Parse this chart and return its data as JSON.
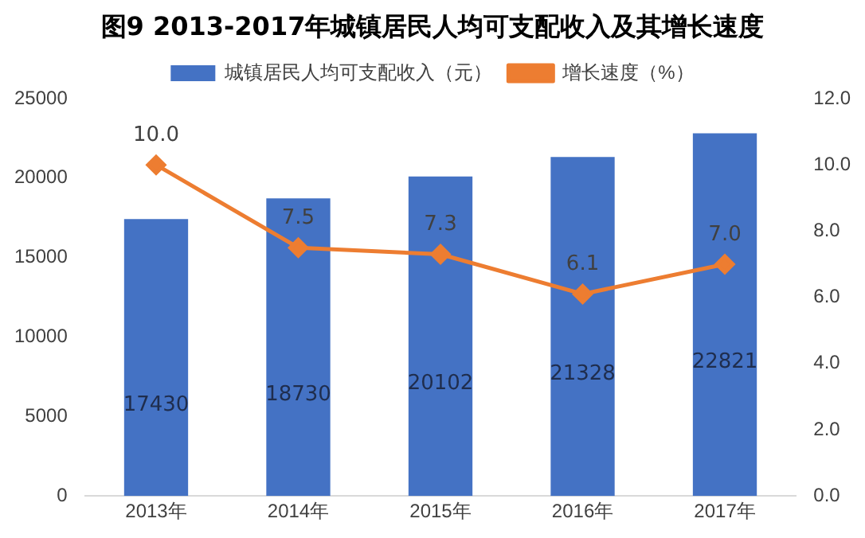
{
  "chart_data": {
    "type": "bar",
    "title": "图9  2013-2017年城镇居民人均可支配收入及其增长速度",
    "categories": [
      "2013年",
      "2014年",
      "2015年",
      "2016年",
      "2017年"
    ],
    "series": [
      {
        "name": "城镇居民人均可支配收入（元）",
        "color": "#4472c4",
        "values": [
          17430,
          18730,
          20102,
          21328,
          22821
        ],
        "value_labels": [
          "17430",
          "18730",
          "20102",
          "21328",
          "22821"
        ]
      },
      {
        "name": "增长速度（%）",
        "type": "line",
        "axis": "y2",
        "color": "#ed7d31",
        "values": [
          10.0,
          7.5,
          7.3,
          6.1,
          7.0
        ],
        "value_labels": [
          "10.0",
          "7.5",
          "7.3",
          "6.1",
          "7.0"
        ]
      }
    ],
    "ylim": [
      0,
      25000
    ],
    "yticks": [
      0,
      5000,
      10000,
      15000,
      20000,
      25000
    ],
    "y2lim": [
      0,
      12
    ],
    "y2ticks": [
      {
        "value": 0,
        "label": "0.0"
      },
      {
        "value": 2,
        "label": "2.0"
      },
      {
        "value": 4,
        "label": "4.0"
      },
      {
        "value": 6,
        "label": "6.0"
      },
      {
        "value": 8,
        "label": "8.0"
      },
      {
        "value": 10,
        "label": "10.0"
      },
      {
        "value": 12,
        "label": "12.0"
      }
    ],
    "legend": "top",
    "grid": false,
    "marker": "diamond"
  }
}
